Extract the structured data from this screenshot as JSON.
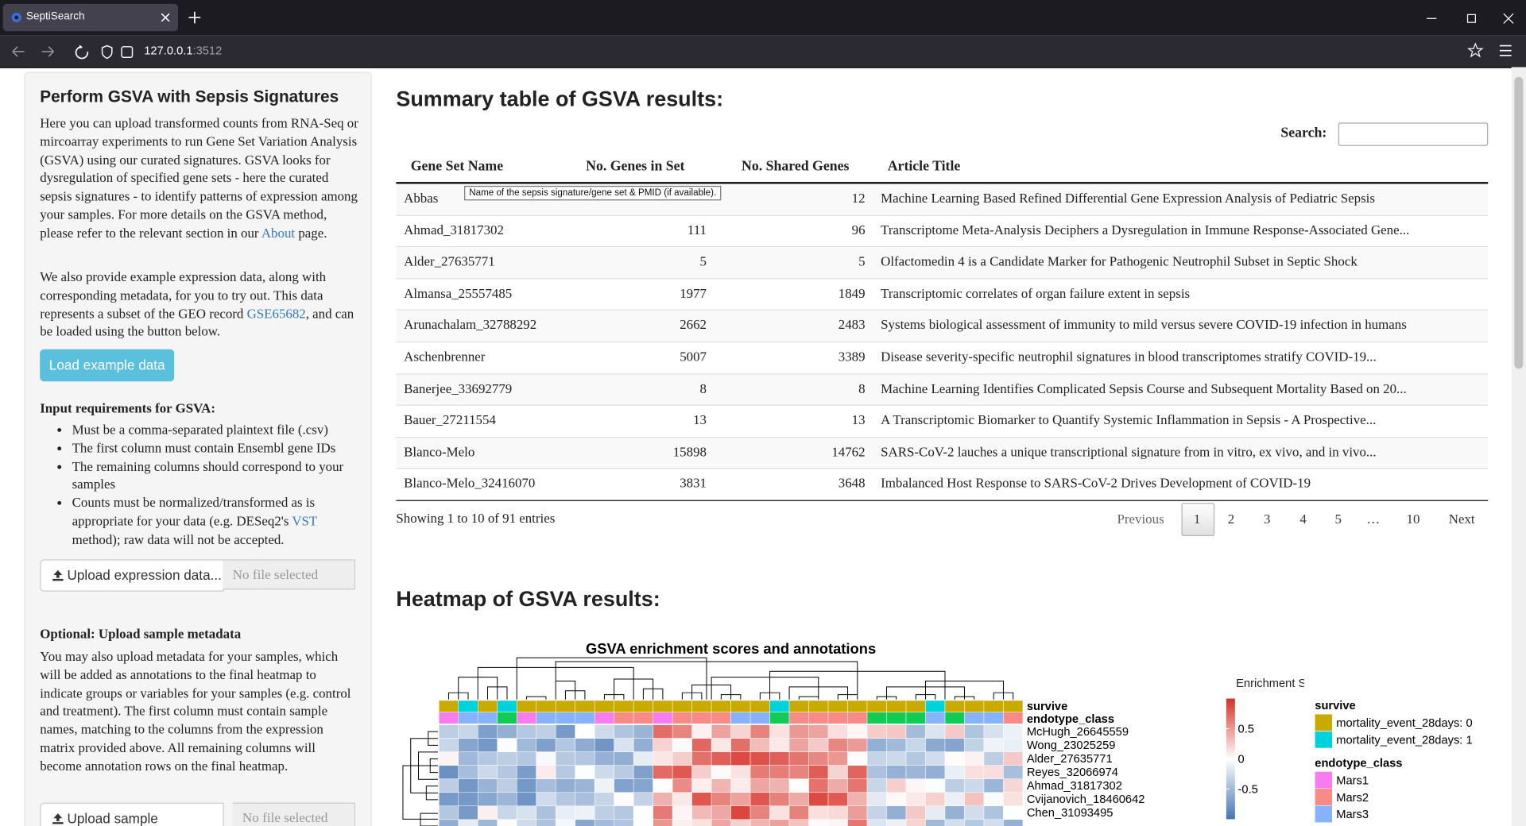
{
  "browser": {
    "tab_title": "SeptiSearch",
    "url_host": "127.0.0.1",
    "url_port": ":3512"
  },
  "sidebar": {
    "title": "Perform GSVA with Sepsis Signatures",
    "intro": {
      "before": "Here you can upload transformed counts from RNA-Seq or mircoarray experiments to run Gene Set Variation Analysis (GSVA) using our curated signatures. GSVA looks for dysregulation of specified gene sets - here the curated sepsis signatures - to identify patterns of expression among your samples. For more details on the GSVA method, please refer to the relevant section in our ",
      "link": "About",
      "after": " page."
    },
    "example": {
      "before": "We also provide example expression data, along with corresponding metadata, for you to try out. This data represents a subset of the GEO record ",
      "link": "GSE65682",
      "after": ", and can be loaded using the button below."
    },
    "load_button": "Load example data",
    "requirements_title": "Input requirements for GSVA:",
    "requirements": [
      "Must be a comma-separated plaintext file (.csv)",
      "The first column must contain Ensembl gene IDs",
      "The remaining columns should correspond to your samples"
    ],
    "requirement_last": {
      "before": "Counts must be normalized/transformed as is appropriate for your data (e.g. DESeq2's ",
      "link": "VST",
      "after": " method); raw data will not be accepted."
    },
    "upload_expression": {
      "button": "Upload expression data...",
      "status": "No file selected"
    },
    "metadata_title": "Optional: Upload sample metadata",
    "metadata_text": "You may also upload metadata for your samples, which will be added as annotations to the final heatmap to indicate groups or variables for your samples (e.g. control and treatment). The first column must contain sample names, matching to the columns from the expression matrix provided above. All remaining columns will become annotation rows on the final heatmap.",
    "upload_metadata": {
      "button": "Upload sample metadata...",
      "status": "No file selected"
    }
  },
  "summary": {
    "heading": "Summary table of GSVA results:",
    "search_label": "Search:",
    "columns": [
      "Gene Set Name",
      "No. Genes in Set",
      "No. Shared Genes",
      "Article Title"
    ],
    "tooltip": "Name of the sepsis signature/gene set & PMID (if available).",
    "rows": [
      [
        "Abbas",
        null,
        "12",
        "Machine Learning Based Refined Differential Gene Expression Analysis of Pediatric Sepsis"
      ],
      [
        "Ahmad_31817302",
        "111",
        "96",
        "Transcriptome Meta-Analysis Deciphers a Dysregulation in Immune Response-Associated Gene..."
      ],
      [
        "Alder_27635771",
        "5",
        "5",
        "Olfactomedin 4 is a Candidate Marker for Pathogenic Neutrophil Subset in Septic Shock"
      ],
      [
        "Almansa_25557485",
        "1977",
        "1849",
        "Transcriptomic correlates of organ failure extent in sepsis"
      ],
      [
        "Arunachalam_32788292",
        "2662",
        "2483",
        "Systems biological assessment of immunity to mild versus severe COVID-19 infection in humans"
      ],
      [
        "Aschenbrenner",
        "5007",
        "3389",
        "Disease severity-specific neutrophil signatures in blood transcriptomes stratify COVID-19..."
      ],
      [
        "Banerjee_33692779",
        "8",
        "8",
        "Machine Learning Identifies Complicated Sepsis Course and Subsequent Mortality Based on 20..."
      ],
      [
        "Bauer_27211554",
        "13",
        "13",
        "A Transcriptomic Biomarker to Quantify Systemic Inflammation in Sepsis - A Prospective..."
      ],
      [
        "Blanco-Melo",
        "15898",
        "14762",
        "SARS-CoV-2 lauches a unique transcriptional signature from in vitro, ex vivo, and in vivo..."
      ],
      [
        "Blanco-Melo_32416070",
        "3831",
        "3648",
        "Imbalanced Host Response to SARS-CoV-2 Drives Development of COVID-19"
      ]
    ],
    "info": "Showing 1 to 10 of 91 entries",
    "pagination": [
      "Previous",
      "1",
      "2",
      "3",
      "4",
      "5",
      "…",
      "10",
      "Next"
    ]
  },
  "heatmap": {
    "heading": "Heatmap of GSVA results:",
    "title": "GSVA enrichment scores and annotations",
    "annotation_rows": [
      "survive",
      "endotype_class"
    ],
    "row_labels": [
      "McHugh_26645559",
      "Wong_23025259",
      "Alder_27635771",
      "Reyes_32066974",
      "Ahmad_31817302",
      "Cvijanovich_18460642",
      "Chen_31093495"
    ],
    "legend_title": "Enrichment Score",
    "colorbar_lim": [
      -1,
      1
    ],
    "colorbar_ticks": [
      0.5,
      0,
      -0.5
    ],
    "legends": [
      {
        "title": "survive",
        "items": [
          {
            "label": "mortality_event_28days: 0",
            "color": "#c8aa00"
          },
          {
            "label": "mortality_event_28days: 1",
            "color": "#00d2dc"
          }
        ]
      },
      {
        "title": "endotype_class",
        "items": [
          {
            "label": "Mars1",
            "color": "#f77cf0"
          },
          {
            "label": "Mars2",
            "color": "#f88a88"
          },
          {
            "label": "Mars3",
            "color": "#86b2ff"
          }
        ]
      }
    ]
  }
}
